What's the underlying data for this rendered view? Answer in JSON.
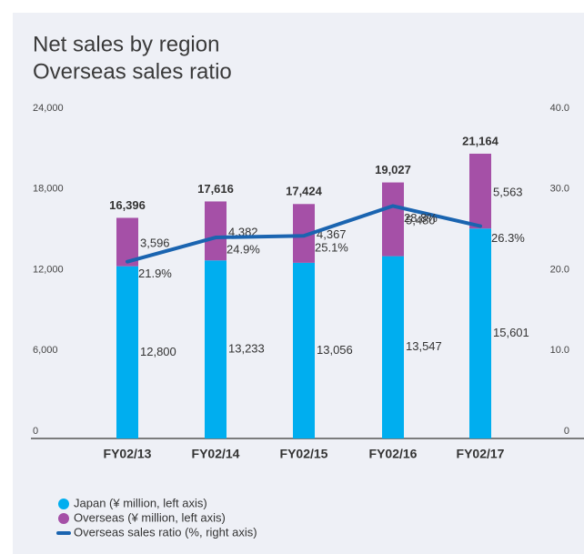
{
  "chart_data": {
    "type": "stacked-bar-line",
    "title": [
      "Net sales by region",
      "Overseas sales ratio"
    ],
    "categories": [
      "FY02/13",
      "FY02/14",
      "FY02/15",
      "FY02/16",
      "FY02/17"
    ],
    "series": [
      {
        "name": "Japan (¥ million, left axis)",
        "color": "#00aeef",
        "values": [
          12800,
          13233,
          13056,
          13547,
          15601
        ],
        "value_labels": [
          "12,800",
          "13,233",
          "13,056",
          "13,547",
          "15,601"
        ]
      },
      {
        "name": "Overseas (¥ million, left axis)",
        "color": "#a550a7",
        "values": [
          3596,
          4382,
          4367,
          5480,
          5563
        ],
        "value_labels": [
          "3,596",
          "4,382",
          "4,367",
          "5,480",
          "5,563"
        ]
      },
      {
        "name": "Overseas sales ratio (%, right axis)",
        "color": "#1a64b0",
        "axis": "y2",
        "values": [
          21.9,
          24.9,
          25.1,
          28.8,
          26.3
        ],
        "value_labels": [
          "21.9%",
          "24.9%",
          "25.1%",
          "28.8%",
          "26.3%"
        ]
      }
    ],
    "totals": [
      16396,
      17616,
      17424,
      19027,
      21164
    ],
    "total_labels": [
      "16,396",
      "17,616",
      "17,424",
      "19,027",
      "21,164"
    ],
    "ylim": [
      0,
      24000
    ],
    "yticks": [
      0,
      {
        "value": 6000,
        "label": "6,000"
      },
      {
        "value": 12000,
        "label": "12,000"
      },
      {
        "value": 18000,
        "label": "18,000"
      },
      {
        "value": 24000,
        "label": "24,000"
      }
    ],
    "y2lim": [
      0,
      40
    ],
    "y2ticks": [
      0,
      {
        "value": 10,
        "label": "10.0"
      },
      {
        "value": 20,
        "label": "20.0"
      },
      {
        "value": 30,
        "label": "30.0"
      },
      {
        "value": 40,
        "label": "40.0"
      }
    ],
    "grid": false
  }
}
